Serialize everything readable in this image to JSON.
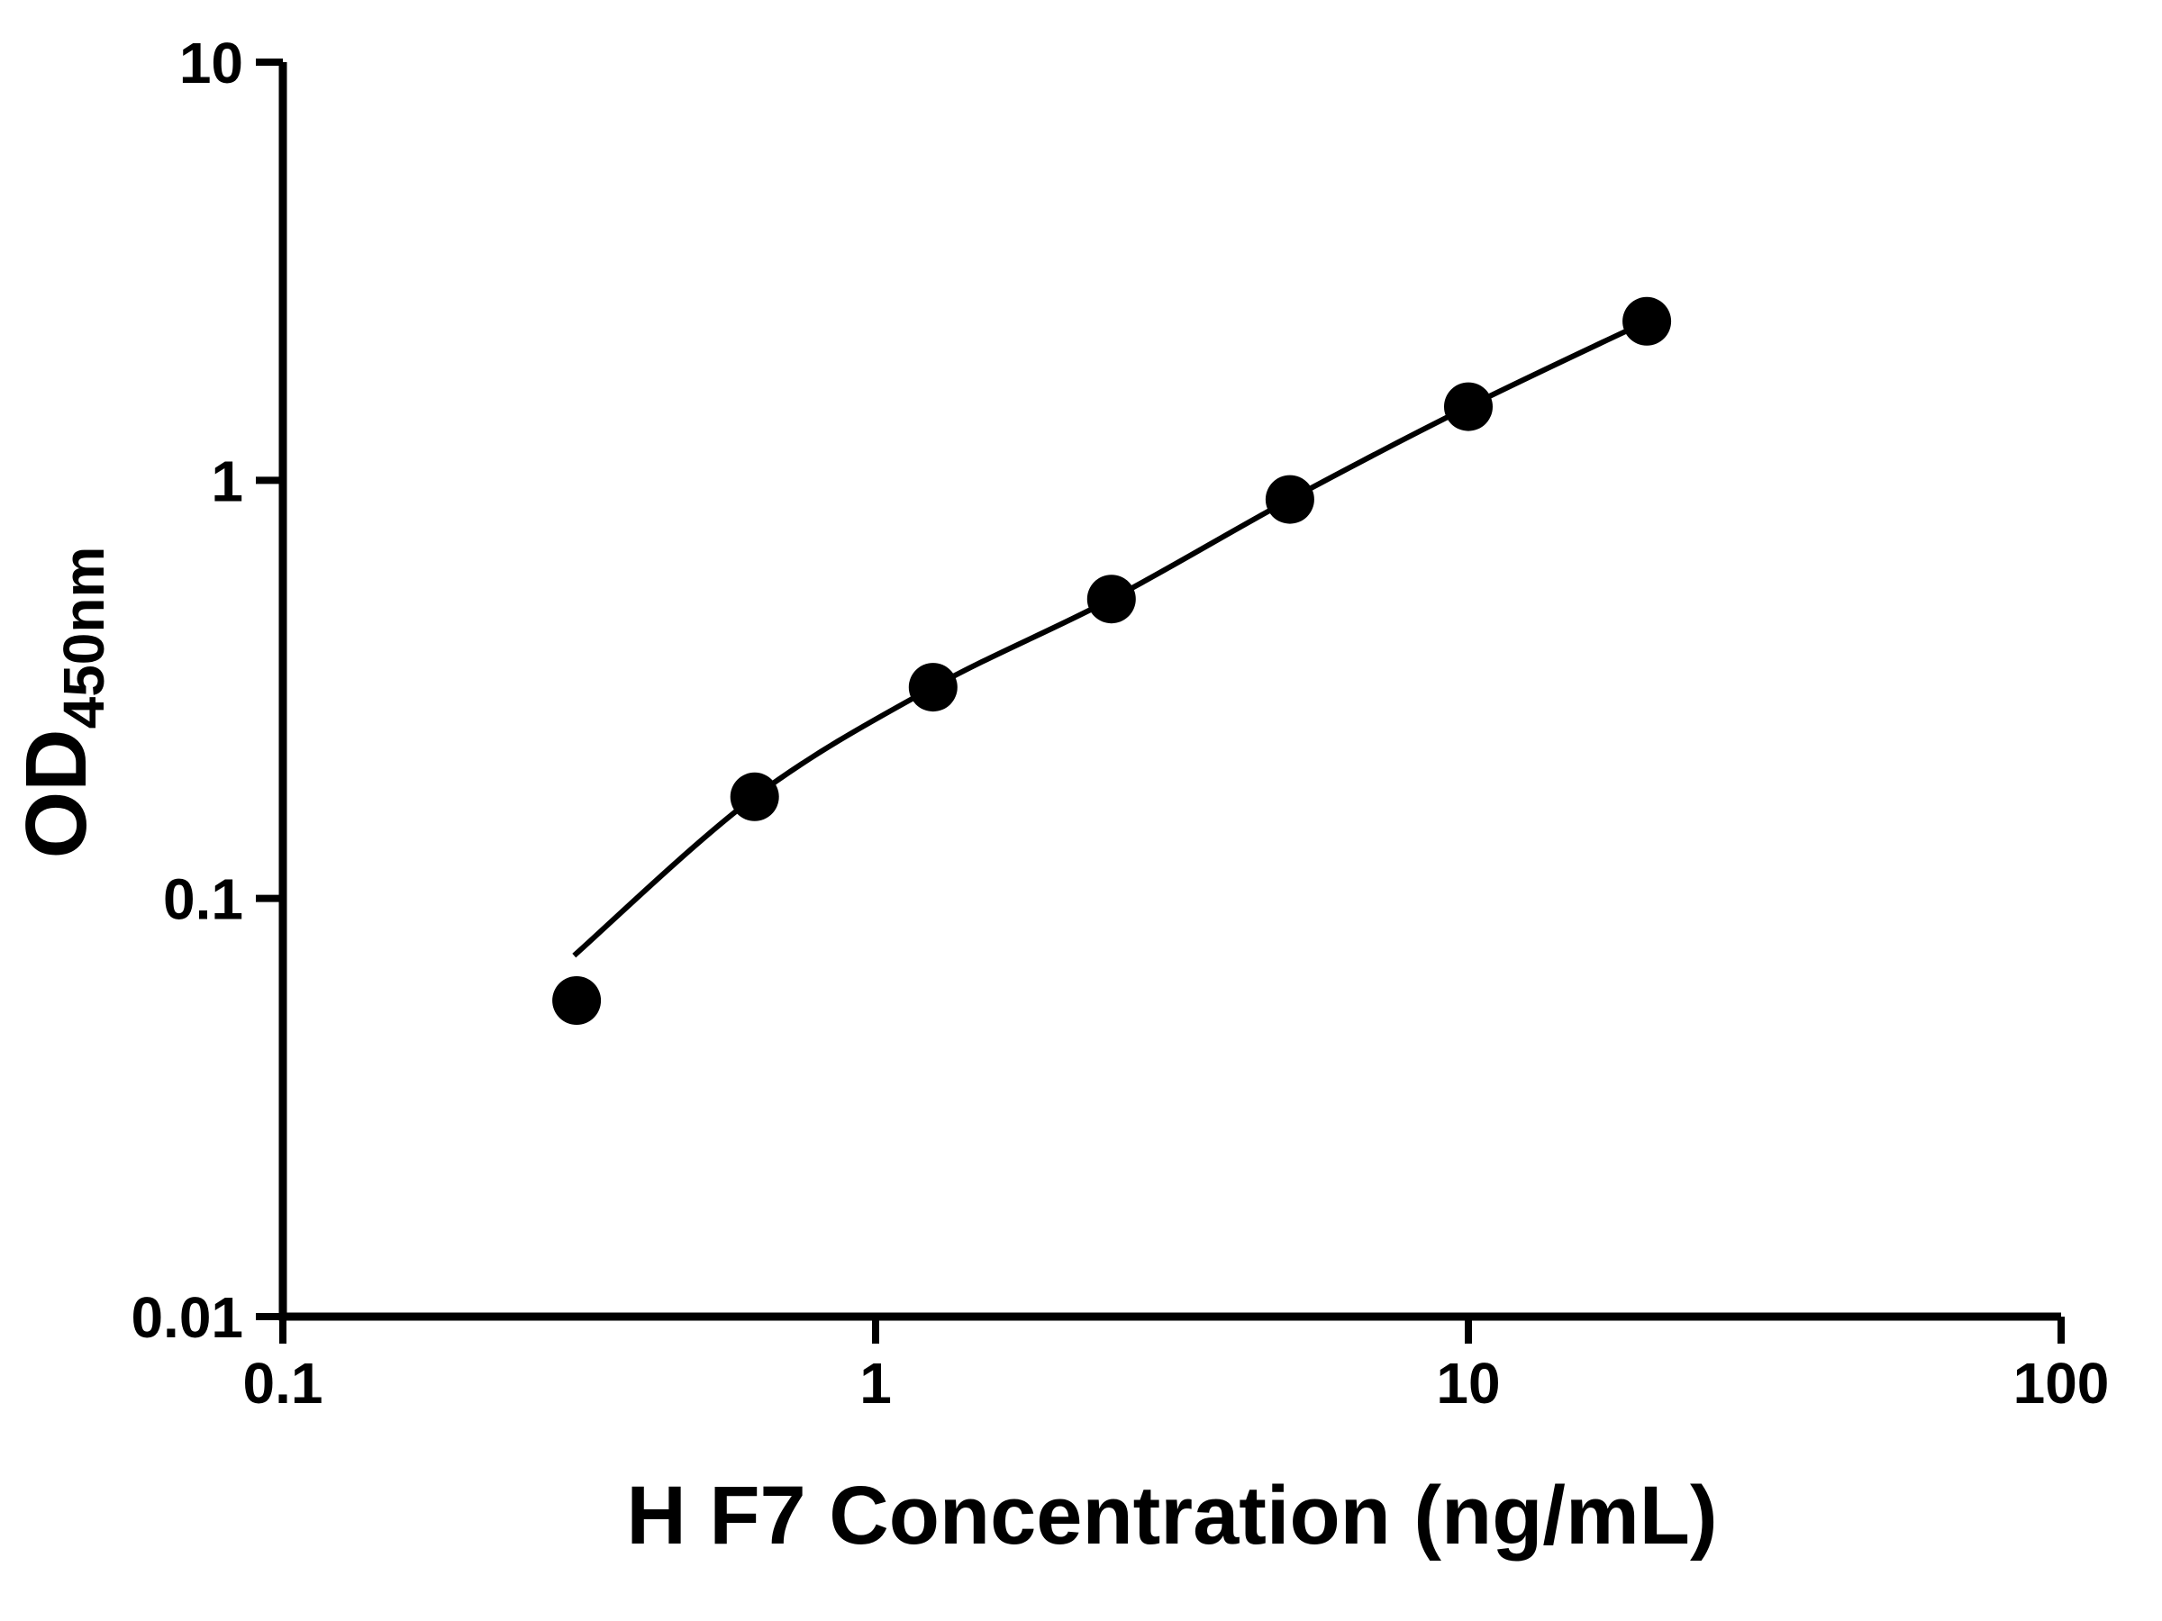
{
  "figure": {
    "background": "#ffffff"
  },
  "chart_data": {
    "type": "scatter",
    "title": "",
    "xlabel": "H F7 Concentration (ng/mL)",
    "ylabel": "OD450nm",
    "ylabel_main": "OD",
    "ylabel_sub": "450nm",
    "xscale": "log",
    "yscale": "log",
    "xlim": [
      0.1,
      100
    ],
    "ylim": [
      0.01,
      10
    ],
    "x_tick_labels": [
      "0.1",
      "1",
      "10",
      "100"
    ],
    "y_tick_labels": [
      "0.01",
      "0.1",
      "1",
      "10"
    ],
    "x": [
      0.313,
      0.625,
      1.25,
      2.5,
      5,
      10,
      20
    ],
    "y": [
      0.057,
      0.175,
      0.32,
      0.52,
      0.9,
      1.5,
      2.4
    ],
    "fit_line": {
      "x": [
        0.31,
        0.625,
        1.25,
        2.5,
        5,
        10,
        20
      ],
      "y": [
        0.073,
        0.175,
        0.32,
        0.52,
        0.9,
        1.5,
        2.4
      ]
    },
    "marker_color": "#000000",
    "line_color": "#000000",
    "axis_color": "#000000",
    "grid": false,
    "legend": false
  }
}
